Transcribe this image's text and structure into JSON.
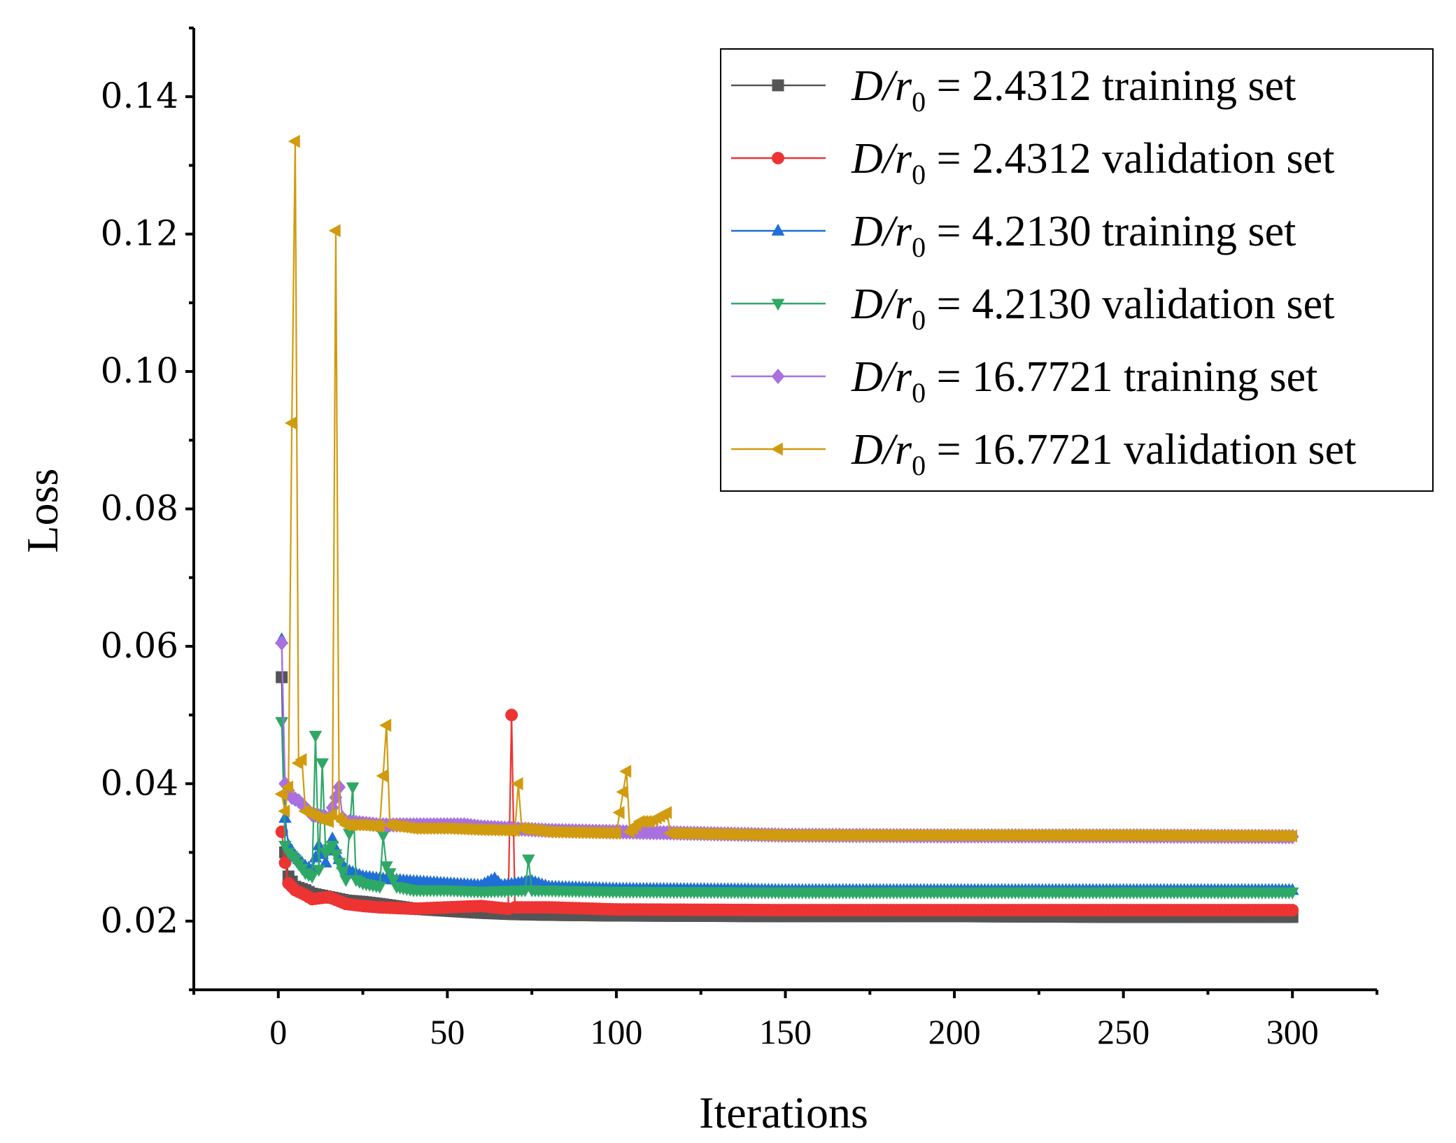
{
  "chart_data": {
    "type": "line",
    "title": "",
    "xlabel": "Iterations",
    "ylabel": "Loss",
    "xlim": [
      -25,
      325
    ],
    "ylim": [
      0.01,
      0.15
    ],
    "x_ticks": [
      0,
      50,
      100,
      150,
      200,
      250,
      300
    ],
    "x_tick_labels": [
      "0",
      "50",
      "100",
      "150",
      "200",
      "250",
      "300"
    ],
    "y_ticks": [
      0.02,
      0.04,
      0.06,
      0.08,
      0.1,
      0.12,
      0.14
    ],
    "y_tick_labels": [
      "0.02",
      "0.04",
      "0.06",
      "0.08",
      "0.10",
      "0.12",
      "0.14"
    ],
    "grid": false,
    "legend_position": "top-right",
    "x_max_iteration": 300,
    "series": [
      {
        "name": "D/r0 = 2.4312 training set",
        "legend_prefix": "D/r",
        "legend_subscript": "0",
        "legend_suffix": " = 2.4312 training set",
        "color": "#555555",
        "marker": "square",
        "values": [
          [
            1,
            0.0555
          ],
          [
            2,
            0.03
          ],
          [
            3,
            0.0265
          ],
          [
            5,
            0.025
          ],
          [
            8,
            0.0245
          ],
          [
            10,
            0.024
          ],
          [
            15,
            0.0235
          ],
          [
            20,
            0.023
          ],
          [
            25,
            0.0228
          ],
          [
            30,
            0.0225
          ],
          [
            40,
            0.0218
          ],
          [
            50,
            0.0215
          ],
          [
            60,
            0.0212
          ],
          [
            70,
            0.021
          ],
          [
            80,
            0.0209
          ],
          [
            100,
            0.0208
          ],
          [
            150,
            0.0207
          ],
          [
            200,
            0.0207
          ],
          [
            250,
            0.0206
          ],
          [
            300,
            0.0206
          ]
        ]
      },
      {
        "name": "D/r0 = 2.4312 validation set",
        "legend_prefix": "D/r",
        "legend_subscript": "0",
        "legend_suffix": " = 2.4312 validation set",
        "color": "#ee3333",
        "marker": "circle",
        "values": [
          [
            1,
            0.033
          ],
          [
            2,
            0.0285
          ],
          [
            3,
            0.0255
          ],
          [
            5,
            0.0245
          ],
          [
            8,
            0.0238
          ],
          [
            10,
            0.0232
          ],
          [
            15,
            0.0235
          ],
          [
            20,
            0.0225
          ],
          [
            25,
            0.0222
          ],
          [
            30,
            0.022
          ],
          [
            40,
            0.0218
          ],
          [
            50,
            0.022
          ],
          [
            60,
            0.0222
          ],
          [
            68,
            0.0218
          ],
          [
            69,
            0.05
          ],
          [
            70,
            0.022
          ],
          [
            80,
            0.022
          ],
          [
            100,
            0.0217
          ],
          [
            150,
            0.0216
          ],
          [
            200,
            0.0216
          ],
          [
            250,
            0.0216
          ],
          [
            300,
            0.0216
          ]
        ]
      },
      {
        "name": "D/r0 = 4.2130 training set",
        "legend_prefix": "D/r",
        "legend_subscript": "0",
        "legend_suffix": " = 4.2130 training set",
        "color": "#1f6fd6",
        "marker": "triangle-up",
        "values": [
          [
            1,
            0.061
          ],
          [
            2,
            0.035
          ],
          [
            3,
            0.031
          ],
          [
            5,
            0.0295
          ],
          [
            8,
            0.028
          ],
          [
            10,
            0.0275
          ],
          [
            12,
            0.031
          ],
          [
            14,
            0.0285
          ],
          [
            16,
            0.032
          ],
          [
            18,
            0.029
          ],
          [
            20,
            0.0275
          ],
          [
            25,
            0.0265
          ],
          [
            30,
            0.0262
          ],
          [
            35,
            0.026
          ],
          [
            40,
            0.0258
          ],
          [
            50,
            0.0255
          ],
          [
            60,
            0.0252
          ],
          [
            64,
            0.0262
          ],
          [
            66,
            0.0252
          ],
          [
            75,
            0.0258
          ],
          [
            80,
            0.025
          ],
          [
            100,
            0.0247
          ],
          [
            135,
            0.0246
          ],
          [
            150,
            0.0245
          ],
          [
            200,
            0.0245
          ],
          [
            250,
            0.0245
          ],
          [
            300,
            0.0245
          ]
        ]
      },
      {
        "name": "D/r0 = 4.2130 validation set",
        "legend_prefix": "D/r",
        "legend_subscript": "0",
        "legend_suffix": " = 4.2130 validation set",
        "color": "#2ea866",
        "marker": "triangle-down",
        "values": [
          [
            1,
            0.049
          ],
          [
            2,
            0.031
          ],
          [
            3,
            0.03
          ],
          [
            5,
            0.029
          ],
          [
            8,
            0.027
          ],
          [
            10,
            0.0265
          ],
          [
            11,
            0.047
          ],
          [
            12,
            0.0275
          ],
          [
            13,
            0.043
          ],
          [
            14,
            0.03
          ],
          [
            16,
            0.031
          ],
          [
            20,
            0.026
          ],
          [
            22,
            0.0395
          ],
          [
            23,
            0.026
          ],
          [
            25,
            0.0255
          ],
          [
            30,
            0.025
          ],
          [
            31,
            0.0325
          ],
          [
            32,
            0.028
          ],
          [
            35,
            0.025
          ],
          [
            40,
            0.0245
          ],
          [
            50,
            0.0245
          ],
          [
            60,
            0.0243
          ],
          [
            73,
            0.0245
          ],
          [
            74,
            0.029
          ],
          [
            75,
            0.0245
          ],
          [
            100,
            0.0243
          ],
          [
            150,
            0.0242
          ],
          [
            200,
            0.0242
          ],
          [
            250,
            0.0242
          ],
          [
            300,
            0.0242
          ]
        ]
      },
      {
        "name": "D/r0 = 16.7721 training set",
        "legend_prefix": "D/r",
        "legend_subscript": "0",
        "legend_suffix": " = 16.7721 training set",
        "color": "#a970e0",
        "marker": "diamond",
        "values": [
          [
            1,
            0.0605
          ],
          [
            2,
            0.04
          ],
          [
            3,
            0.039
          ],
          [
            4,
            0.038
          ],
          [
            6,
            0.0375
          ],
          [
            8,
            0.0365
          ],
          [
            10,
            0.0355
          ],
          [
            15,
            0.035
          ],
          [
            18,
            0.0395
          ],
          [
            19,
            0.035
          ],
          [
            20,
            0.0345
          ],
          [
            30,
            0.034
          ],
          [
            40,
            0.034
          ],
          [
            55,
            0.034
          ],
          [
            60,
            0.0337
          ],
          [
            80,
            0.0332
          ],
          [
            100,
            0.033
          ],
          [
            150,
            0.0325
          ],
          [
            200,
            0.0324
          ],
          [
            250,
            0.0324
          ],
          [
            300,
            0.0323
          ]
        ]
      },
      {
        "name": "D/r0 = 16.7721 validation set",
        "legend_prefix": "D/r",
        "legend_subscript": "0",
        "legend_suffix": " = 16.7721 validation set",
        "color": "#d19b0f",
        "marker": "triangle-left",
        "values": [
          [
            1,
            0.0385
          ],
          [
            2,
            0.036
          ],
          [
            3,
            0.0395
          ],
          [
            4,
            0.0925
          ],
          [
            5,
            0.1335
          ],
          [
            6,
            0.043
          ],
          [
            7,
            0.0435
          ],
          [
            8,
            0.036
          ],
          [
            10,
            0.0355
          ],
          [
            12,
            0.035
          ],
          [
            15,
            0.0345
          ],
          [
            16,
            0.0355
          ],
          [
            17,
            0.1205
          ],
          [
            18,
            0.035
          ],
          [
            20,
            0.034
          ],
          [
            25,
            0.034
          ],
          [
            30,
            0.0338
          ],
          [
            32,
            0.0485
          ],
          [
            33,
            0.034
          ],
          [
            40,
            0.0335
          ],
          [
            50,
            0.0335
          ],
          [
            60,
            0.0333
          ],
          [
            70,
            0.0332
          ],
          [
            71,
            0.04
          ],
          [
            72,
            0.0335
          ],
          [
            80,
            0.033
          ],
          [
            100,
            0.0328
          ],
          [
            103,
            0.0418
          ],
          [
            104,
            0.033
          ],
          [
            107,
            0.0345
          ],
          [
            110,
            0.0345
          ],
          [
            115,
            0.0358
          ],
          [
            116,
            0.0328
          ],
          [
            150,
            0.0325
          ],
          [
            200,
            0.0325
          ],
          [
            250,
            0.0325
          ],
          [
            300,
            0.0324
          ]
        ]
      }
    ]
  }
}
